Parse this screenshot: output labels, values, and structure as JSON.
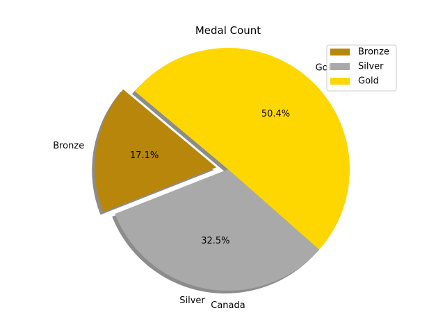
{
  "chart_data": {
    "type": "pie",
    "title": "Medal Count",
    "xlabel": "Canada",
    "slices": [
      {
        "label": "Bronze",
        "value": 17.1,
        "pct_label": "17.1%",
        "color": "#B8860B",
        "exploded": true
      },
      {
        "label": "Silver",
        "value": 32.5,
        "pct_label": "32.5%",
        "color": "#A9A9A9",
        "exploded": false
      },
      {
        "label": "Gold",
        "value": 50.4,
        "pct_label": "50.4%",
        "color": "#FFD700",
        "exploded": false
      }
    ],
    "legend": {
      "placement": "top-right",
      "entries": [
        "Bronze",
        "Silver",
        "Gold"
      ]
    },
    "shadow": true
  }
}
